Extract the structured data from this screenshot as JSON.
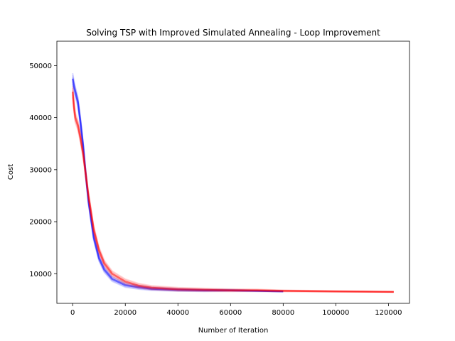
{
  "chart_data": {
    "type": "line",
    "title": "Solving TSP with Improved Simulated Annealing - Loop Improvement",
    "xlabel": "Number of Iteration",
    "ylabel": "Cost",
    "xlim": [
      -6000,
      128000
    ],
    "ylim": [
      4300,
      54700
    ],
    "xticks": [
      0,
      20000,
      40000,
      60000,
      80000,
      100000,
      120000
    ],
    "xtick_labels": [
      "0",
      "20000",
      "40000",
      "60000",
      "80000",
      "100000",
      "120000"
    ],
    "yticks": [
      10000,
      20000,
      30000,
      40000,
      50000
    ],
    "ytick_labels": [
      "10000",
      "20000",
      "30000",
      "40000",
      "50000"
    ],
    "grid": false,
    "legend": "none",
    "series": [
      {
        "color": "#0000ff",
        "x": [
          0,
          500,
          1000,
          2000,
          3000,
          4000,
          5000,
          6000,
          8000,
          10000,
          12000,
          15000,
          20000,
          25000,
          30000,
          40000,
          50000,
          60000,
          70000,
          80000
        ],
        "values": [
          47500,
          46000,
          45000,
          43000,
          39000,
          34500,
          29000,
          24000,
          17000,
          13000,
          10800,
          9000,
          7800,
          7400,
          7100,
          6900,
          6800,
          6800,
          6700,
          6600
        ]
      },
      {
        "color": "#ff0000",
        "x": [
          0,
          500,
          1000,
          2000,
          3000,
          4000,
          5000,
          6000,
          8000,
          10000,
          12000,
          15000,
          20000,
          25000,
          30000,
          40000,
          50000,
          60000,
          70000,
          80000,
          100000,
          122000
        ],
        "values": [
          45000,
          42000,
          40000,
          38500,
          36000,
          33000,
          29000,
          25000,
          18500,
          14500,
          12000,
          10000,
          8500,
          7700,
          7300,
          7000,
          6900,
          6800,
          6800,
          6700,
          6600,
          6500
        ]
      }
    ]
  }
}
